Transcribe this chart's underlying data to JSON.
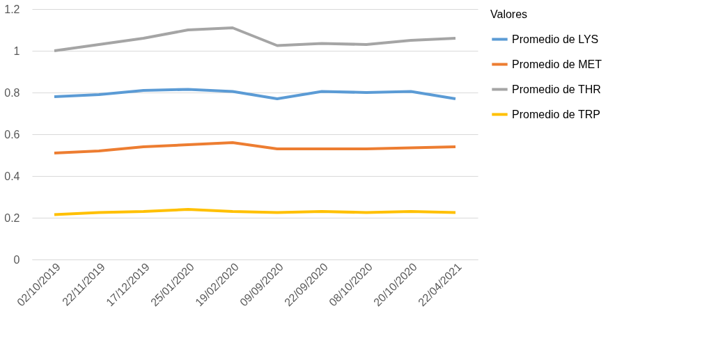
{
  "chart_data": {
    "type": "line",
    "categories": [
      "02/10/2019",
      "22/11/2019",
      "17/12/2019",
      "25/01/2020",
      "19/02/2020",
      "09/09/2020",
      "22/09/2020",
      "08/10/2020",
      "20/10/2020",
      "22/04/2021"
    ],
    "ylim": [
      0,
      1.2
    ],
    "yticks": [
      0,
      0.2,
      0.4,
      0.6,
      0.8,
      1,
      1.2
    ],
    "grid": "y",
    "legend": "right",
    "legend_title": "Valores",
    "marker": "none",
    "line_style": "solid",
    "series": [
      {
        "name": "Promedio de LYS",
        "color": "#5b9bd5",
        "values": [
          0.78,
          0.79,
          0.81,
          0.815,
          0.805,
          0.77,
          0.805,
          0.8,
          0.805,
          0.77
        ]
      },
      {
        "name": "Promedio de MET",
        "color": "#ed7d31",
        "values": [
          0.51,
          0.52,
          0.54,
          0.55,
          0.56,
          0.53,
          0.53,
          0.53,
          0.535,
          0.54
        ]
      },
      {
        "name": "Promedio de THR",
        "color": "#a5a5a5",
        "values": [
          1.0,
          1.03,
          1.06,
          1.1,
          1.11,
          1.025,
          1.035,
          1.03,
          1.05,
          1.06
        ]
      },
      {
        "name": "Promedio de TRP",
        "color": "#ffc000",
        "values": [
          0.215,
          0.225,
          0.23,
          0.24,
          0.23,
          0.225,
          0.23,
          0.225,
          0.23,
          0.225
        ]
      }
    ]
  }
}
